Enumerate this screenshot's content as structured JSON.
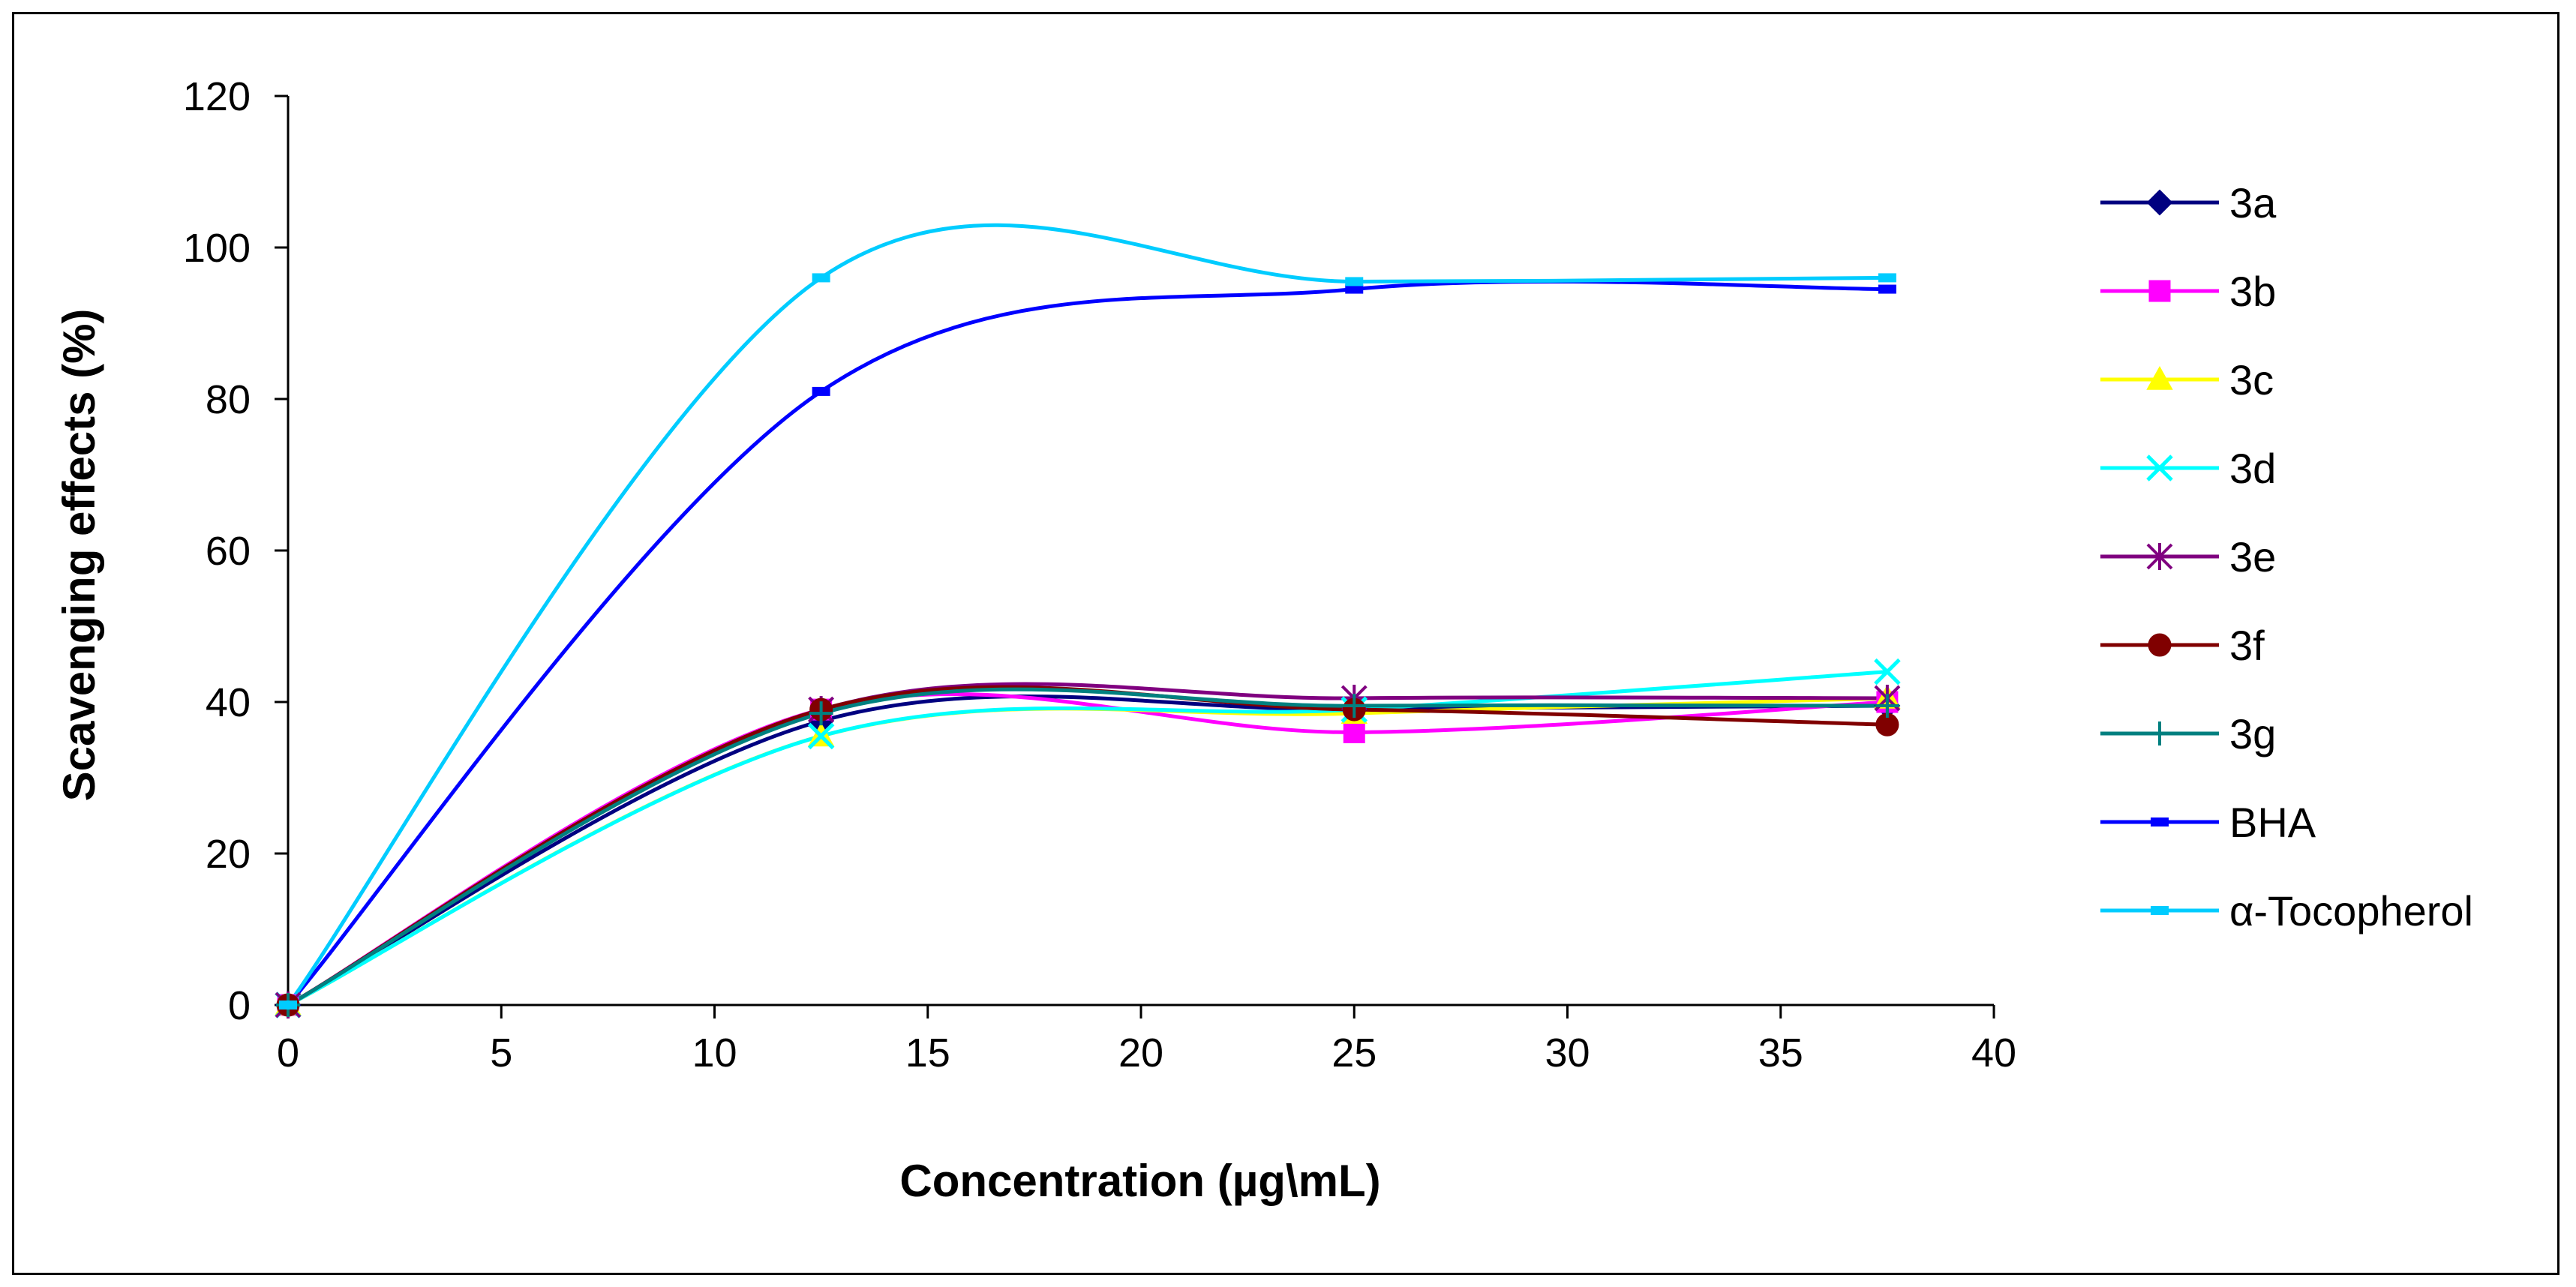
{
  "chart_data": {
    "type": "line",
    "title": "",
    "xlabel": "Concentration (µg\\mL)",
    "ylabel": "Scavenging effects (%)",
    "xlim": [
      0,
      40
    ],
    "ylim": [
      0,
      120
    ],
    "xticks": [
      0,
      5,
      10,
      15,
      20,
      25,
      30,
      35,
      40
    ],
    "yticks": [
      0,
      20,
      40,
      60,
      80,
      100,
      120
    ],
    "grid": false,
    "smooth": true,
    "legend_position": "right",
    "x": [
      0,
      12.5,
      25,
      37.5
    ],
    "series": [
      {
        "name": "3a",
        "marker": "diamond",
        "color": "#000080",
        "values": [
          0,
          37.5,
          39,
          39.5
        ]
      },
      {
        "name": "3b",
        "marker": "square",
        "color": "#FF00FF",
        "values": [
          0,
          39,
          36,
          40
        ]
      },
      {
        "name": "3c",
        "marker": "triangle",
        "color": "#FFFF00",
        "values": [
          0,
          35.5,
          38.5,
          40.5
        ]
      },
      {
        "name": "3d",
        "marker": "x",
        "color": "#00FFFF",
        "values": [
          0,
          35.5,
          39,
          44
        ]
      },
      {
        "name": "3e",
        "marker": "asterisk",
        "color": "#800080",
        "values": [
          0,
          39,
          40.5,
          40.5
        ]
      },
      {
        "name": "3f",
        "marker": "circle",
        "color": "#800000",
        "values": [
          0,
          39,
          39,
          37
        ]
      },
      {
        "name": "3g",
        "marker": "plus",
        "color": "#008080",
        "values": [
          0,
          38.5,
          39.5,
          39.5
        ]
      },
      {
        "name": "BHA",
        "marker": "dash",
        "color": "#0000FF",
        "values": [
          0,
          81,
          94.5,
          94.5
        ]
      },
      {
        "name": "α-Tocopherol",
        "marker": "dash",
        "color": "#00CCFF",
        "values": [
          0,
          96,
          95.5,
          96
        ]
      }
    ]
  }
}
